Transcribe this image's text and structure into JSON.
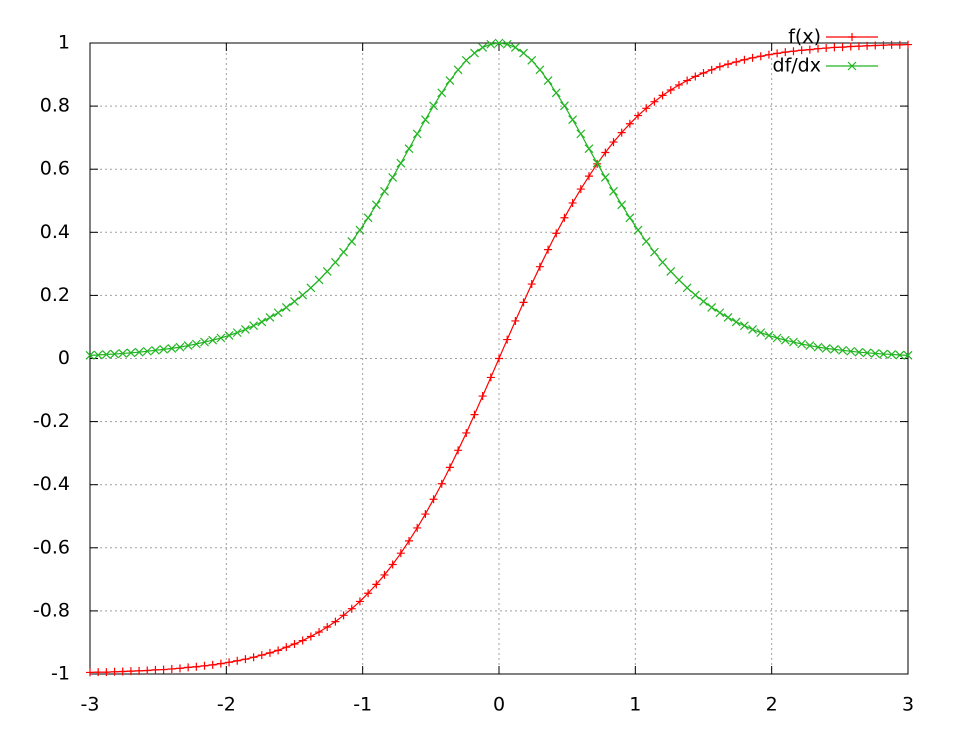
{
  "chart_data": {
    "type": "line",
    "x": [
      -3,
      -2.94,
      -2.88,
      -2.82,
      -2.76,
      -2.7,
      -2.64,
      -2.58,
      -2.52,
      -2.46,
      -2.4,
      -2.34,
      -2.28,
      -2.22,
      -2.16,
      -2.1,
      -2.04,
      -1.98,
      -1.92,
      -1.86,
      -1.8,
      -1.74,
      -1.68,
      -1.62,
      -1.56,
      -1.5,
      -1.44,
      -1.38,
      -1.32,
      -1.26,
      -1.2,
      -1.14,
      -1.08,
      -1.02,
      -0.96,
      -0.9,
      -0.84,
      -0.78,
      -0.72,
      -0.66,
      -0.6,
      -0.54,
      -0.48,
      -0.42,
      -0.36,
      -0.3,
      -0.24,
      -0.18,
      -0.12,
      -0.06,
      0,
      0.06,
      0.12,
      0.18,
      0.24,
      0.3,
      0.36,
      0.42,
      0.48,
      0.54,
      0.6,
      0.66,
      0.72,
      0.78,
      0.84,
      0.9,
      0.96,
      1.02,
      1.08,
      1.14,
      1.2,
      1.26,
      1.32,
      1.38,
      1.44,
      1.5,
      1.56,
      1.62,
      1.68,
      1.74,
      1.8,
      1.86,
      1.92,
      1.98,
      2.04,
      2.1,
      2.16,
      2.22,
      2.28,
      2.34,
      2.4,
      2.46,
      2.52,
      2.58,
      2.64,
      2.7,
      2.76,
      2.82,
      2.88,
      2.94,
      3
    ],
    "series": [
      {
        "name": "f(x)",
        "color": "#ff0000",
        "marker": "plus",
        "values": [
          -0.995,
          -0.994,
          -0.994,
          -0.993,
          -0.992,
          -0.991,
          -0.99,
          -0.989,
          -0.987,
          -0.986,
          -0.984,
          -0.982,
          -0.979,
          -0.977,
          -0.974,
          -0.971,
          -0.967,
          -0.963,
          -0.958,
          -0.953,
          -0.947,
          -0.94,
          -0.933,
          -0.925,
          -0.915,
          -0.905,
          -0.894,
          -0.881,
          -0.867,
          -0.851,
          -0.834,
          -0.814,
          -0.793,
          -0.77,
          -0.744,
          -0.716,
          -0.686,
          -0.653,
          -0.617,
          -0.578,
          -0.537,
          -0.493,
          -0.446,
          -0.397,
          -0.345,
          -0.291,
          -0.236,
          -0.178,
          -0.119,
          -0.06,
          0,
          0.06,
          0.119,
          0.178,
          0.236,
          0.291,
          0.345,
          0.397,
          0.446,
          0.493,
          0.537,
          0.578,
          0.617,
          0.653,
          0.686,
          0.716,
          0.744,
          0.77,
          0.793,
          0.814,
          0.834,
          0.851,
          0.867,
          0.881,
          0.894,
          0.905,
          0.915,
          0.925,
          0.933,
          0.94,
          0.947,
          0.953,
          0.958,
          0.963,
          0.967,
          0.971,
          0.974,
          0.977,
          0.979,
          0.982,
          0.984,
          0.986,
          0.987,
          0.989,
          0.99,
          0.991,
          0.992,
          0.993,
          0.994,
          0.994,
          0.995
        ]
      },
      {
        "name": "df/dx",
        "color": "#22b522",
        "marker": "cross",
        "values": [
          0.01,
          0.011,
          0.013,
          0.014,
          0.016,
          0.018,
          0.02,
          0.023,
          0.026,
          0.029,
          0.032,
          0.036,
          0.041,
          0.046,
          0.052,
          0.058,
          0.065,
          0.073,
          0.082,
          0.092,
          0.104,
          0.116,
          0.13,
          0.145,
          0.162,
          0.181,
          0.201,
          0.224,
          0.249,
          0.276,
          0.305,
          0.337,
          0.371,
          0.407,
          0.446,
          0.487,
          0.53,
          0.574,
          0.619,
          0.665,
          0.712,
          0.757,
          0.801,
          0.842,
          0.881,
          0.915,
          0.945,
          0.968,
          0.986,
          0.996,
          1,
          0.996,
          0.986,
          0.968,
          0.945,
          0.915,
          0.881,
          0.842,
          0.801,
          0.757,
          0.712,
          0.665,
          0.619,
          0.574,
          0.53,
          0.487,
          0.446,
          0.407,
          0.371,
          0.337,
          0.305,
          0.276,
          0.249,
          0.224,
          0.201,
          0.181,
          0.162,
          0.145,
          0.13,
          0.116,
          0.104,
          0.092,
          0.082,
          0.073,
          0.065,
          0.058,
          0.052,
          0.046,
          0.041,
          0.036,
          0.032,
          0.029,
          0.026,
          0.023,
          0.02,
          0.018,
          0.016,
          0.014,
          0.013,
          0.011,
          0.01
        ]
      }
    ],
    "xlim": [
      -3,
      3
    ],
    "xticks": [
      -3,
      -2,
      -1,
      0,
      1,
      2,
      3
    ],
    "ylim": [
      -1,
      1
    ],
    "yticks": [
      -1,
      -0.8,
      -0.6,
      -0.4,
      -0.2,
      0,
      0.2,
      0.4,
      0.6,
      0.8,
      1
    ],
    "grid": true,
    "legend": "top-right"
  }
}
